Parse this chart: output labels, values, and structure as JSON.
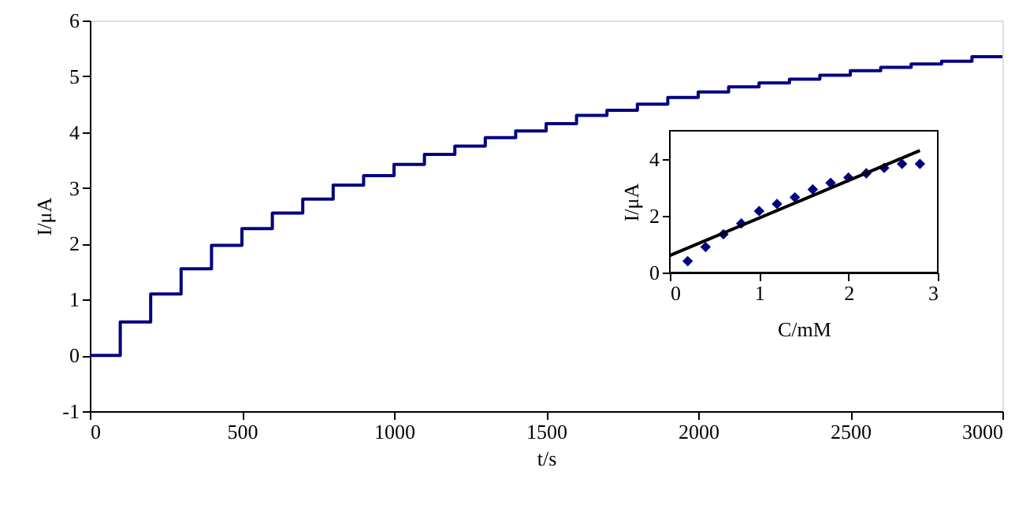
{
  "chart_data": [
    {
      "type": "step",
      "xlabel": "t/s",
      "ylabel": "I/μA",
      "xlim": [
        0,
        3000
      ],
      "xticks": [
        0,
        500,
        1000,
        1500,
        2000,
        2500,
        3000
      ],
      "ylim": [
        -1,
        6
      ],
      "yticks": [
        -1,
        0,
        1,
        2,
        3,
        4,
        5,
        6
      ],
      "grid": false,
      "series": [
        {
          "color": "#000080",
          "line_style": "solid",
          "x": [
            0,
            100,
            200,
            300,
            400,
            500,
            600,
            700,
            800,
            900,
            1000,
            1100,
            1200,
            1300,
            1400,
            1500,
            1600,
            1700,
            1800,
            1900,
            2000,
            2100,
            2200,
            2300,
            2400,
            2500,
            2600,
            2700,
            2800,
            2900,
            3000
          ],
          "values": [
            0,
            0.6,
            1.1,
            1.55,
            1.97,
            2.27,
            2.55,
            2.8,
            3.05,
            3.22,
            3.42,
            3.6,
            3.75,
            3.9,
            4.02,
            4.15,
            4.3,
            4.39,
            4.5,
            4.62,
            4.72,
            4.81,
            4.88,
            4.95,
            5.02,
            5.1,
            5.16,
            5.22,
            5.27,
            5.35,
            5.35
          ]
        }
      ]
    },
    {
      "type": "scatter",
      "xlabel": "C/mM",
      "ylabel": "I/μA",
      "xlim": [
        0,
        3
      ],
      "xticks": [
        0,
        1,
        2,
        3
      ],
      "ylim": [
        0,
        5
      ],
      "yticks": [
        0,
        2,
        4
      ],
      "grid": false,
      "series": [
        {
          "type": "scatter",
          "marker": "diamond",
          "color": "#000080",
          "x": [
            0.2,
            0.4,
            0.6,
            0.8,
            1.0,
            1.2,
            1.4,
            1.6,
            1.8,
            2.0,
            2.2,
            2.4,
            2.6,
            2.8
          ],
          "values": [
            0.4,
            0.9,
            1.35,
            1.73,
            2.17,
            2.42,
            2.65,
            2.93,
            3.16,
            3.35,
            3.5,
            3.69,
            3.83,
            3.83
          ]
        },
        {
          "type": "line",
          "line_style": "solid",
          "color": "#000000",
          "x": [
            0,
            2.8
          ],
          "values": [
            0.6,
            4.3
          ]
        }
      ]
    }
  ]
}
